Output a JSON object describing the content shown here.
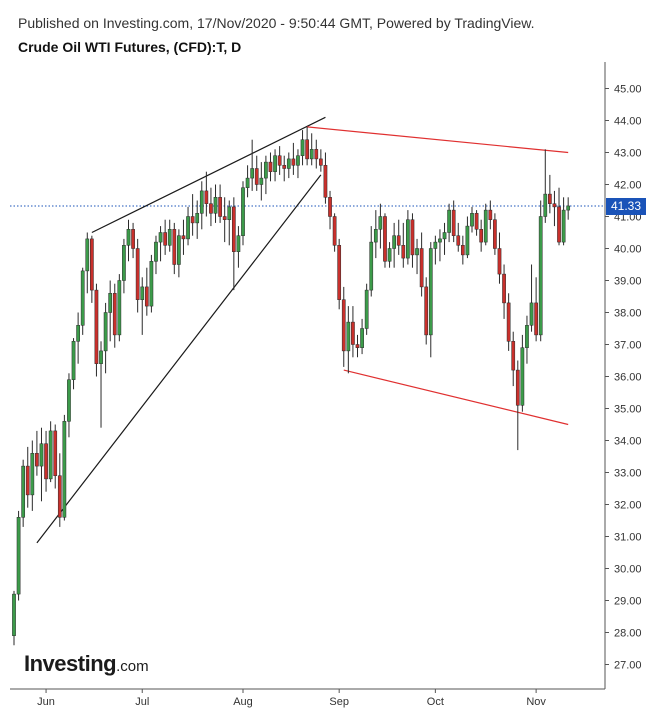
{
  "header": {
    "published": "Published on Investing.com, 17/Nov/2020 - 9:50:44 GMT, Powered by TradingView.",
    "title": "Crude Oil WTI Futures, (CFD):T, D"
  },
  "logo": {
    "main": "Investing",
    "suffix": ".com"
  },
  "chart_data": {
    "type": "candlestick",
    "title": "Crude Oil WTI Futures, (CFD):T, D",
    "ylim": [
      26.5,
      45.5
    ],
    "y_ticks": [
      "27.00",
      "28.00",
      "29.00",
      "30.00",
      "31.00",
      "32.00",
      "33.00",
      "34.00",
      "35.00",
      "36.00",
      "37.00",
      "38.00",
      "39.00",
      "40.00",
      "41.00",
      "42.00",
      "43.00",
      "44.00",
      "45.00"
    ],
    "x_ticks": [
      {
        "label": "Jun",
        "index": 7
      },
      {
        "label": "Jul",
        "index": 28
      },
      {
        "label": "Aug",
        "index": 50
      },
      {
        "label": "Sep",
        "index": 71
      },
      {
        "label": "Oct",
        "index": 92
      },
      {
        "label": "Nov",
        "index": 114
      }
    ],
    "last_price": 41.33,
    "last_price_label": "41.33",
    "colors": {
      "up": "#3c9b4a",
      "down": "#c9302c",
      "wedge": "#1a1a1a",
      "channel": "#e03030",
      "last_price": "#1a53b8"
    },
    "candles": [
      [
        27.9,
        29.3,
        27.6,
        29.2
      ],
      [
        29.2,
        31.8,
        29.0,
        31.6
      ],
      [
        31.6,
        33.4,
        31.3,
        33.2
      ],
      [
        33.2,
        33.8,
        31.9,
        32.3
      ],
      [
        32.3,
        34.0,
        31.8,
        33.6
      ],
      [
        33.6,
        34.3,
        32.9,
        33.2
      ],
      [
        33.2,
        34.4,
        32.1,
        33.9
      ],
      [
        33.9,
        34.3,
        32.4,
        32.8
      ],
      [
        32.8,
        34.6,
        32.7,
        34.3
      ],
      [
        34.3,
        34.5,
        32.5,
        32.9
      ],
      [
        32.9,
        33.6,
        31.3,
        31.6
      ],
      [
        31.6,
        34.8,
        31.5,
        34.6
      ],
      [
        34.6,
        36.1,
        34.1,
        35.9
      ],
      [
        35.9,
        37.2,
        35.6,
        37.1
      ],
      [
        37.1,
        38.0,
        36.4,
        37.6
      ],
      [
        37.6,
        39.4,
        37.3,
        39.3
      ],
      [
        39.3,
        40.5,
        38.6,
        40.3
      ],
      [
        40.3,
        40.4,
        38.3,
        38.7
      ],
      [
        38.7,
        38.9,
        36.0,
        36.4
      ],
      [
        36.4,
        37.1,
        34.4,
        36.8
      ],
      [
        36.8,
        38.3,
        36.1,
        38.0
      ],
      [
        38.0,
        39.0,
        37.1,
        38.6
      ],
      [
        38.6,
        38.9,
        36.9,
        37.3
      ],
      [
        37.3,
        39.2,
        37.1,
        39.0
      ],
      [
        39.0,
        40.3,
        38.6,
        40.1
      ],
      [
        40.1,
        40.9,
        39.6,
        40.6
      ],
      [
        40.6,
        40.8,
        39.7,
        40.0
      ],
      [
        40.0,
        40.3,
        38.0,
        38.4
      ],
      [
        38.4,
        39.1,
        37.3,
        38.8
      ],
      [
        38.8,
        39.4,
        37.9,
        38.2
      ],
      [
        38.2,
        39.8,
        38.0,
        39.6
      ],
      [
        39.6,
        40.4,
        39.2,
        40.2
      ],
      [
        40.2,
        40.7,
        39.6,
        40.5
      ],
      [
        40.5,
        40.9,
        39.8,
        40.1
      ],
      [
        40.1,
        40.9,
        39.9,
        40.6
      ],
      [
        40.6,
        40.8,
        39.2,
        39.5
      ],
      [
        39.5,
        40.6,
        39.1,
        40.4
      ],
      [
        40.4,
        40.9,
        39.8,
        40.3
      ],
      [
        40.3,
        41.3,
        40.1,
        41.0
      ],
      [
        41.0,
        41.7,
        40.4,
        40.8
      ],
      [
        40.8,
        41.5,
        40.3,
        41.1
      ],
      [
        41.1,
        42.1,
        40.6,
        41.8
      ],
      [
        41.8,
        42.4,
        41.0,
        41.4
      ],
      [
        41.4,
        41.9,
        40.7,
        41.1
      ],
      [
        41.1,
        42.0,
        40.8,
        41.6
      ],
      [
        41.6,
        42.0,
        40.8,
        41.0
      ],
      [
        41.0,
        41.6,
        40.2,
        40.9
      ],
      [
        40.9,
        41.5,
        40.1,
        41.3
      ],
      [
        41.3,
        41.6,
        38.7,
        39.9
      ],
      [
        39.9,
        40.7,
        39.4,
        40.4
      ],
      [
        40.4,
        42.1,
        40.1,
        41.9
      ],
      [
        41.9,
        42.6,
        41.6,
        42.2
      ],
      [
        42.2,
        43.4,
        41.8,
        42.5
      ],
      [
        42.5,
        42.9,
        41.8,
        42.0
      ],
      [
        42.0,
        42.7,
        41.5,
        42.2
      ],
      [
        42.2,
        42.9,
        41.7,
        42.7
      ],
      [
        42.7,
        43.0,
        42.1,
        42.4
      ],
      [
        42.4,
        43.1,
        42.1,
        42.9
      ],
      [
        42.9,
        43.2,
        42.3,
        42.6
      ],
      [
        42.6,
        42.9,
        42.1,
        42.5
      ],
      [
        42.5,
        43.0,
        42.2,
        42.8
      ],
      [
        42.8,
        43.3,
        42.3,
        42.6
      ],
      [
        42.6,
        43.1,
        42.2,
        42.9
      ],
      [
        42.9,
        43.7,
        42.6,
        43.4
      ],
      [
        43.4,
        43.8,
        42.6,
        42.8
      ],
      [
        42.8,
        43.6,
        42.6,
        43.1
      ],
      [
        43.1,
        43.4,
        42.5,
        42.8
      ],
      [
        42.8,
        43.1,
        42.4,
        42.6
      ],
      [
        42.6,
        43.0,
        41.4,
        41.6
      ],
      [
        41.6,
        41.8,
        40.6,
        41.0
      ],
      [
        41.0,
        41.1,
        39.9,
        40.1
      ],
      [
        40.1,
        40.3,
        38.1,
        38.4
      ],
      [
        38.4,
        38.8,
        36.3,
        36.8
      ],
      [
        36.8,
        38.2,
        36.1,
        37.7
      ],
      [
        37.7,
        38.2,
        36.6,
        37.0
      ],
      [
        37.0,
        37.3,
        36.6,
        36.9
      ],
      [
        36.9,
        37.8,
        36.7,
        37.5
      ],
      [
        37.5,
        38.9,
        37.3,
        38.7
      ],
      [
        38.7,
        40.7,
        38.5,
        40.2
      ],
      [
        40.2,
        41.2,
        39.7,
        40.6
      ],
      [
        40.6,
        41.4,
        40.0,
        41.0
      ],
      [
        41.0,
        41.1,
        39.4,
        39.6
      ],
      [
        39.6,
        40.2,
        39.4,
        40.0
      ],
      [
        40.0,
        40.8,
        39.4,
        40.4
      ],
      [
        40.4,
        40.9,
        39.8,
        40.1
      ],
      [
        40.1,
        40.8,
        39.4,
        39.7
      ],
      [
        39.7,
        41.2,
        39.5,
        40.9
      ],
      [
        40.9,
        41.1,
        39.4,
        39.8
      ],
      [
        39.8,
        40.3,
        39.2,
        40.0
      ],
      [
        40.0,
        40.5,
        38.5,
        38.8
      ],
      [
        38.8,
        39.1,
        37.0,
        37.3
      ],
      [
        37.3,
        40.2,
        36.6,
        40.0
      ],
      [
        40.0,
        40.4,
        39.5,
        40.2
      ],
      [
        40.2,
        40.6,
        39.6,
        40.3
      ],
      [
        40.3,
        40.8,
        39.8,
        40.5
      ],
      [
        40.5,
        41.4,
        40.2,
        41.2
      ],
      [
        41.2,
        41.5,
        40.2,
        40.4
      ],
      [
        40.4,
        40.8,
        39.9,
        40.1
      ],
      [
        40.1,
        40.4,
        39.5,
        39.8
      ],
      [
        39.8,
        41.0,
        39.7,
        40.7
      ],
      [
        40.7,
        41.3,
        40.5,
        41.1
      ],
      [
        41.1,
        41.2,
        40.4,
        40.6
      ],
      [
        40.6,
        40.9,
        39.9,
        40.2
      ],
      [
        40.2,
        41.4,
        40.1,
        41.2
      ],
      [
        41.2,
        41.5,
        40.6,
        40.9
      ],
      [
        40.9,
        41.1,
        39.8,
        40.0
      ],
      [
        40.0,
        40.5,
        38.9,
        39.2
      ],
      [
        39.2,
        39.5,
        37.8,
        38.3
      ],
      [
        38.3,
        38.6,
        36.8,
        37.1
      ],
      [
        37.1,
        37.4,
        35.7,
        36.2
      ],
      [
        36.2,
        36.5,
        33.7,
        35.1
      ],
      [
        35.1,
        37.3,
        34.9,
        36.9
      ],
      [
        36.9,
        37.9,
        36.4,
        37.6
      ],
      [
        37.6,
        39.5,
        37.4,
        38.3
      ],
      [
        38.3,
        39.1,
        37.1,
        37.3
      ],
      [
        37.3,
        41.5,
        37.1,
        41.0
      ],
      [
        41.0,
        43.1,
        40.8,
        41.7
      ],
      [
        41.7,
        42.3,
        41.1,
        41.4
      ],
      [
        41.4,
        41.8,
        40.7,
        41.3
      ],
      [
        41.3,
        41.9,
        40.1,
        40.2
      ],
      [
        40.2,
        41.6,
        40.1,
        41.2
      ],
      [
        41.2,
        41.6,
        40.9,
        41.33
      ]
    ],
    "trendlines": [
      {
        "kind": "wedge-upper",
        "color": "#1a1a1a",
        "from": [
          17,
          40.5
        ],
        "to": [
          68,
          44.1
        ]
      },
      {
        "kind": "wedge-lower",
        "color": "#1a1a1a",
        "from": [
          5,
          30.8
        ],
        "to": [
          67,
          42.3
        ]
      },
      {
        "kind": "channel-upper",
        "color": "#e03030",
        "from": [
          64,
          43.8
        ],
        "to": [
          121,
          43.0
        ]
      },
      {
        "kind": "channel-lower",
        "color": "#e03030",
        "from": [
          72,
          36.2
        ],
        "to": [
          121,
          34.5
        ]
      }
    ]
  }
}
